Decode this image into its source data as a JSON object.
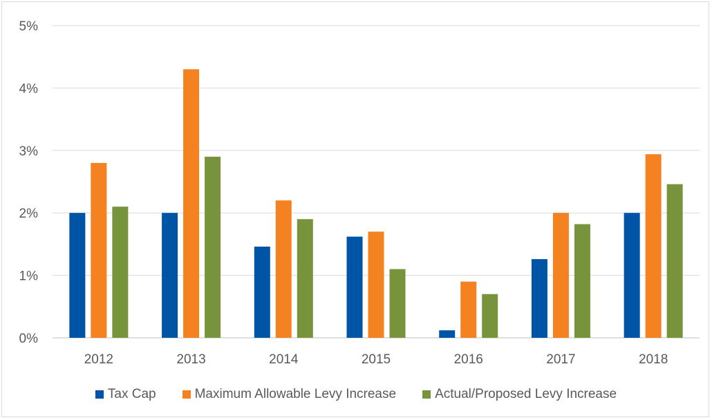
{
  "chart_data": {
    "type": "bar",
    "categories": [
      "2012",
      "2013",
      "2014",
      "2015",
      "2016",
      "2017",
      "2018"
    ],
    "series": [
      {
        "name": "Tax Cap",
        "color": "#0054a6",
        "values": [
          2.0,
          2.0,
          1.46,
          1.62,
          0.12,
          1.26,
          2.0
        ]
      },
      {
        "name": "Maximum Allowable Levy Increase",
        "color": "#f58220",
        "values": [
          2.8,
          4.3,
          2.2,
          1.7,
          0.9,
          2.0,
          2.94
        ]
      },
      {
        "name": "Actual/Proposed Levy Increase",
        "color": "#77933c",
        "values": [
          2.1,
          2.9,
          1.9,
          1.1,
          0.7,
          1.82,
          2.46
        ]
      }
    ],
    "ylim": [
      0,
      5
    ],
    "yticks": [
      "0%",
      "1%",
      "2%",
      "3%",
      "4%",
      "5%"
    ],
    "grid": true,
    "legend_position": "bottom"
  }
}
